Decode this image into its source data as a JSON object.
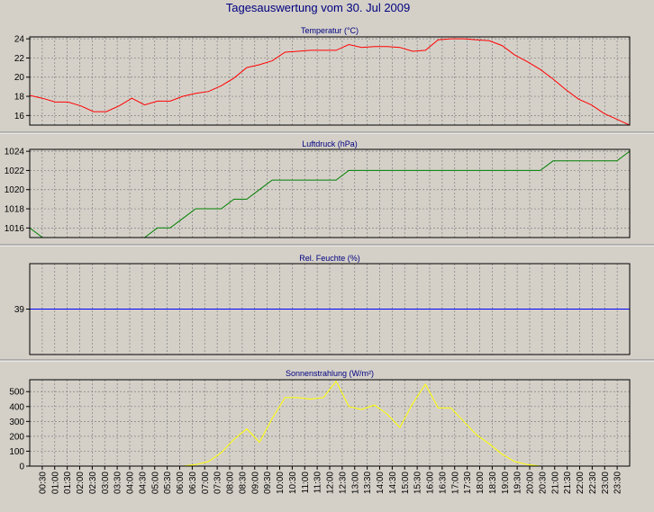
{
  "page_title": "Tagesauswertung vom 30. Jul 2009",
  "time_labels": [
    "00:30",
    "01:00",
    "01:30",
    "02:00",
    "02:30",
    "03:00",
    "03:30",
    "04:00",
    "04:30",
    "05:00",
    "05:30",
    "06:00",
    "06:30",
    "07:00",
    "07:30",
    "08:00",
    "08:30",
    "09:00",
    "09:30",
    "10:00",
    "10:30",
    "11:00",
    "11:30",
    "12:00",
    "12:30",
    "13:00",
    "13:30",
    "14:00",
    "14:30",
    "15:00",
    "15:30",
    "16:00",
    "16:30",
    "17:00",
    "17:30",
    "18:00",
    "18:30",
    "19:00",
    "19:30",
    "20:00",
    "20:30",
    "21:00",
    "21:30",
    "22:00",
    "22:30",
    "23:00",
    "23:30"
  ],
  "colors": {
    "background": "#d4d0c8",
    "plot_bg": "#d4d0c8",
    "title": "#000080",
    "grid": "#808080",
    "temperature": "#ff0000",
    "pressure": "#008000",
    "humidity": "#0000ff",
    "radiation": "#ffff00"
  },
  "chart_data": [
    {
      "type": "line",
      "title": "Temperatur (°C)",
      "yticks": [
        16,
        18,
        20,
        22,
        24
      ],
      "ylim": [
        15,
        24.2
      ],
      "grid": true,
      "series": [
        {
          "color": "#ff0000",
          "values": [
            18.1,
            17.8,
            17.4,
            17.4,
            17.0,
            16.4,
            16.4,
            17.0,
            17.8,
            17.1,
            17.5,
            17.5,
            18.0,
            18.3,
            18.5,
            19.1,
            19.9,
            21.0,
            21.3,
            21.7,
            22.6,
            22.7,
            22.8,
            22.8,
            22.8,
            23.4,
            23.1,
            23.2,
            23.2,
            23.1,
            22.7,
            22.8,
            23.9,
            24.0,
            24.0,
            23.9,
            23.8,
            23.3,
            22.3,
            21.6,
            20.8,
            19.8,
            18.7,
            17.7,
            17.1,
            16.2,
            15.6,
            15.0
          ]
        }
      ]
    },
    {
      "type": "line",
      "title": "Luftdruck (hPa)",
      "yticks": [
        1016,
        1018,
        1020,
        1022,
        1024
      ],
      "ylim": [
        1015,
        1024.2
      ],
      "grid": true,
      "series": [
        {
          "color": "#008000",
          "values": [
            1016,
            1015,
            1015,
            1015,
            1015,
            1015,
            1015,
            1015,
            1015,
            1015,
            1016,
            1016,
            1017,
            1018,
            1018,
            1018,
            1019,
            1019,
            1020,
            1021,
            1021,
            1021,
            1021,
            1021,
            1021,
            1022,
            1022,
            1022,
            1022,
            1022,
            1022,
            1022,
            1022,
            1022,
            1022,
            1022,
            1022,
            1022,
            1022,
            1022,
            1022,
            1023,
            1023,
            1023,
            1023,
            1023,
            1023,
            1024
          ]
        }
      ]
    },
    {
      "type": "line",
      "title": "Rel. Feuchte (%)",
      "yticks": [
        39
      ],
      "ylim": [
        34,
        44
      ],
      "grid": true,
      "series": [
        {
          "color": "#0000ff",
          "values": [
            39,
            39,
            39,
            39,
            39,
            39,
            39,
            39,
            39,
            39,
            39,
            39,
            39,
            39,
            39,
            39,
            39,
            39,
            39,
            39,
            39,
            39,
            39,
            39,
            39,
            39,
            39,
            39,
            39,
            39,
            39,
            39,
            39,
            39,
            39,
            39,
            39,
            39,
            39,
            39,
            39,
            39,
            39,
            39,
            39,
            39,
            39,
            39
          ]
        }
      ]
    },
    {
      "type": "line",
      "title": "Sonnenstrahlung (W/m²)",
      "yticks": [
        0,
        100,
        200,
        300,
        400,
        500
      ],
      "ylim": [
        0,
        580
      ],
      "grid": true,
      "series": [
        {
          "color": "#ffff00",
          "values": [
            0,
            0,
            0,
            0,
            0,
            0,
            0,
            0,
            0,
            0,
            0,
            0,
            0,
            10,
            30,
            90,
            180,
            250,
            160,
            320,
            460,
            460,
            450,
            460,
            570,
            400,
            380,
            410,
            350,
            260,
            420,
            550,
            390,
            390,
            300,
            210,
            150,
            80,
            30,
            10,
            0,
            0,
            0,
            0,
            0,
            0,
            0,
            0
          ]
        }
      ]
    }
  ]
}
